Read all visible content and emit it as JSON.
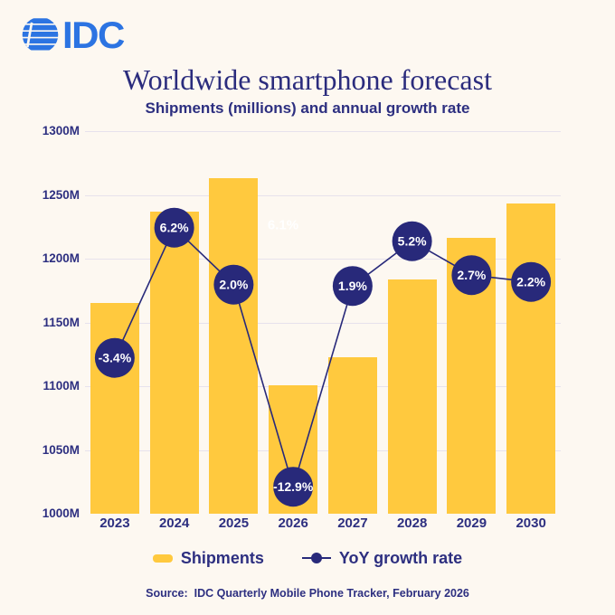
{
  "colors": {
    "background": "#FDF8F1",
    "bar_yellow": "#FFC93E",
    "navy": "#28297A",
    "text_navy": "#2D2F80",
    "gridline": "#E7E2EC",
    "logo_blue": "#2C74E2",
    "ghost_label_color": "#FFFFFF"
  },
  "logo": {
    "text": "IDC"
  },
  "header": {
    "title": "Worldwide smartphone forecast",
    "subtitle": "Shipments (millions) and annual growth rate"
  },
  "chart_data": {
    "type": "bar",
    "title": "Worldwide smartphone forecast",
    "subtitle": "Shipments (millions) and annual growth rate",
    "categories": [
      "2023",
      "2024",
      "2025",
      "2026",
      "2027",
      "2028",
      "2029",
      "2030"
    ],
    "series": [
      {
        "name": "Shipments",
        "type": "bar",
        "unit": "millions",
        "values": [
          1165,
          1237,
          1263,
          1101,
          1123,
          1184,
          1216,
          1243
        ]
      },
      {
        "name": "YoY growth rate",
        "type": "line",
        "unit": "%",
        "values": [
          -3.4,
          6.2,
          2.0,
          -12.9,
          1.9,
          5.2,
          2.7,
          2.2
        ],
        "labels": [
          "-3.4%",
          "6.2%",
          "2.0%",
          "-12.9%",
          "1.9%",
          "5.2%",
          "2.7%",
          "2.2%"
        ]
      }
    ],
    "ylim": [
      1000,
      1300
    ],
    "yticks": [
      {
        "label": "1300M",
        "value": 1300
      },
      {
        "label": "1250M",
        "value": 1250
      },
      {
        "label": "1200M",
        "value": 1200
      },
      {
        "label": "1150M",
        "value": 1150
      },
      {
        "label": "1100M",
        "value": 1100
      },
      {
        "label": "1050M",
        "value": 1050
      },
      {
        "label": "1000M",
        "value": 1000
      }
    ],
    "grid": "horizontal",
    "legend_position": "bottom",
    "ghost_label": "6.1%"
  },
  "legend": {
    "shipments_label": "Shipments",
    "yoy_label": "YoY growth rate"
  },
  "source": {
    "text": "Source:  IDC Quarterly Mobile Phone Tracker, February 2026"
  }
}
